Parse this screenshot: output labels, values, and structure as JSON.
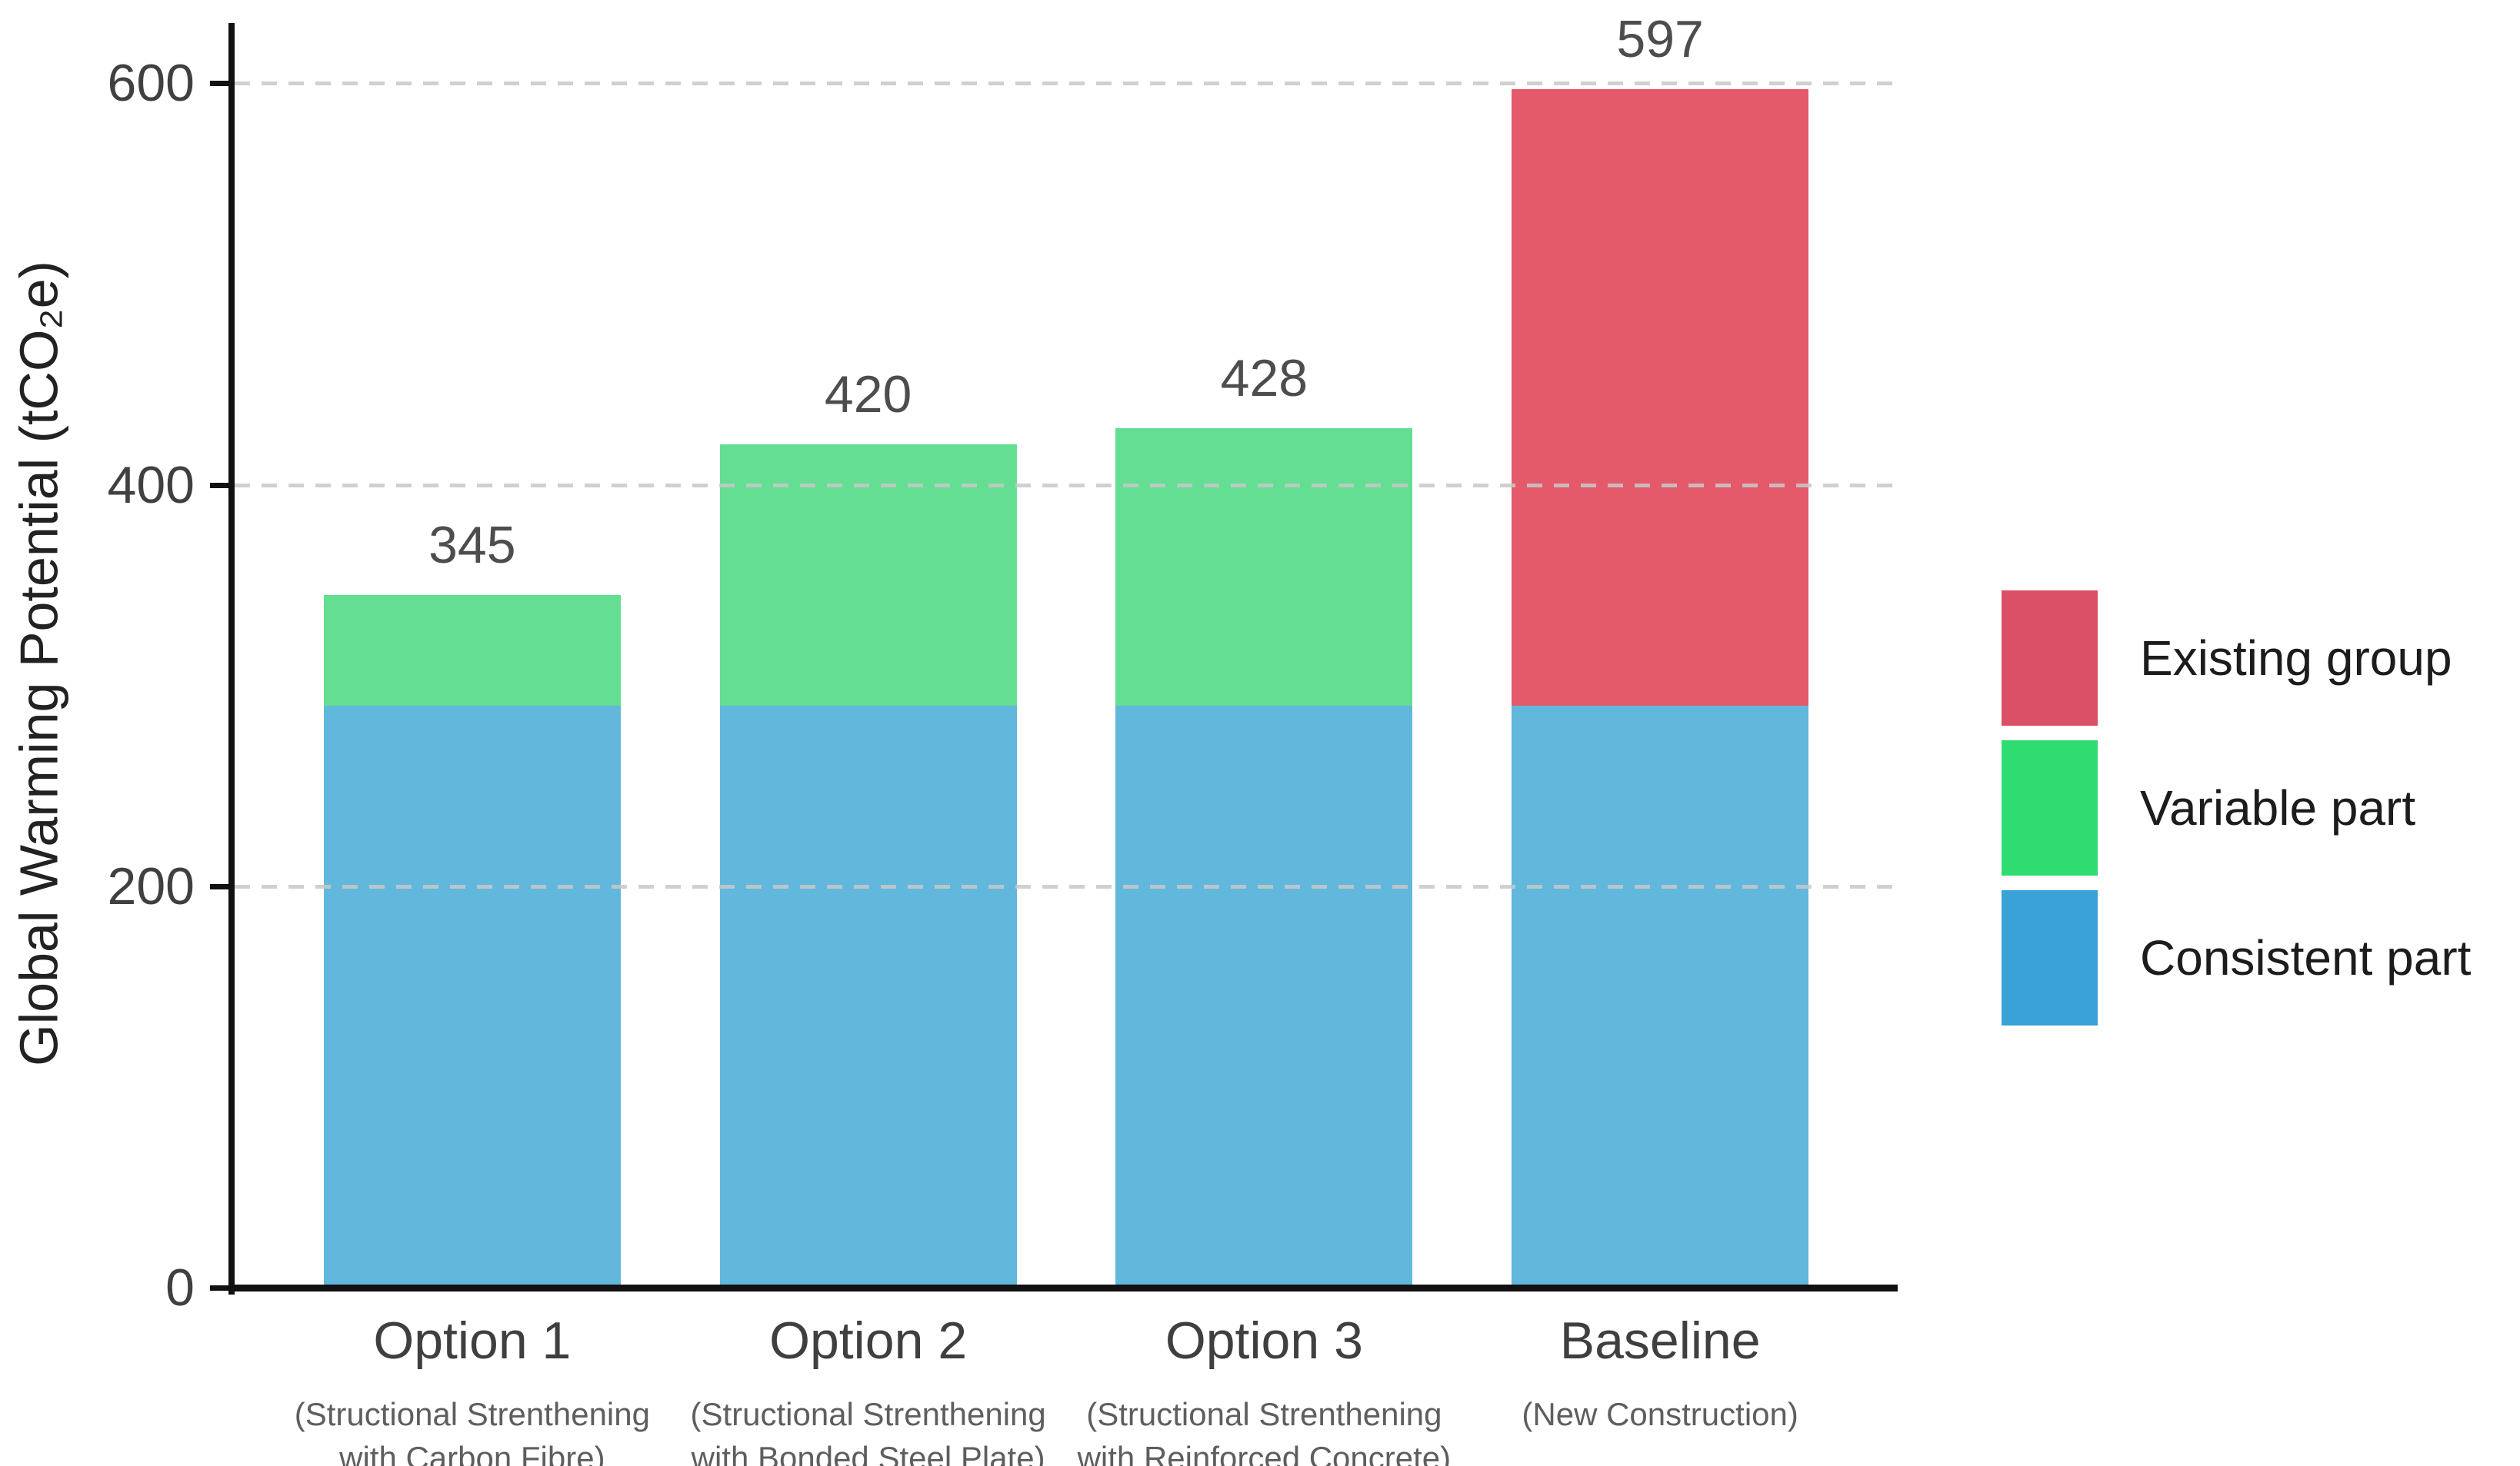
{
  "chart_data": {
    "type": "bar",
    "stacked": true,
    "title": "",
    "xlabel": "",
    "ylabel": "Global Warming Potential (tCO₂e)",
    "ylim": [
      0,
      630
    ],
    "yticks": [
      0,
      200,
      400,
      600
    ],
    "grid": {
      "show": true,
      "values": [
        200,
        400,
        600
      ],
      "style": "dashed",
      "color": "#cbcbcb"
    },
    "categories": [
      {
        "label": "Option 1",
        "sublabel": [
          "(Structional Strenthening",
          "with Carbon Fibre)"
        ]
      },
      {
        "label": "Option 2",
        "sublabel": [
          "(Structional Strenthening",
          "with Bonded Steel Plate)"
        ]
      },
      {
        "label": "Option 3",
        "sublabel": [
          "(Structional Strenthening",
          "with Reinforced Concrete)"
        ]
      },
      {
        "label": "Baseline",
        "sublabel": [
          "(New Construction)"
        ]
      }
    ],
    "series": [
      {
        "name": "Consistent part",
        "color": "#62B7DC",
        "legend_color": "#3AA1D9",
        "values": [
          290,
          290,
          290,
          290
        ]
      },
      {
        "name": "Variable part",
        "color": "#64DE92",
        "legend_color": "#2EDC72",
        "values": [
          55,
          130,
          138,
          0
        ]
      },
      {
        "name": "Existing group",
        "color": "#E45A6A",
        "legend_color": "#DC5066",
        "values": [
          0,
          0,
          0,
          307
        ]
      }
    ],
    "totals": [
      345,
      420,
      428,
      597
    ],
    "bar_width_fraction": 0.75,
    "x_padding": 0.6,
    "legend": {
      "position": "right",
      "order_top_to_bottom": [
        "Existing group",
        "Variable part",
        "Consistent part"
      ]
    }
  }
}
